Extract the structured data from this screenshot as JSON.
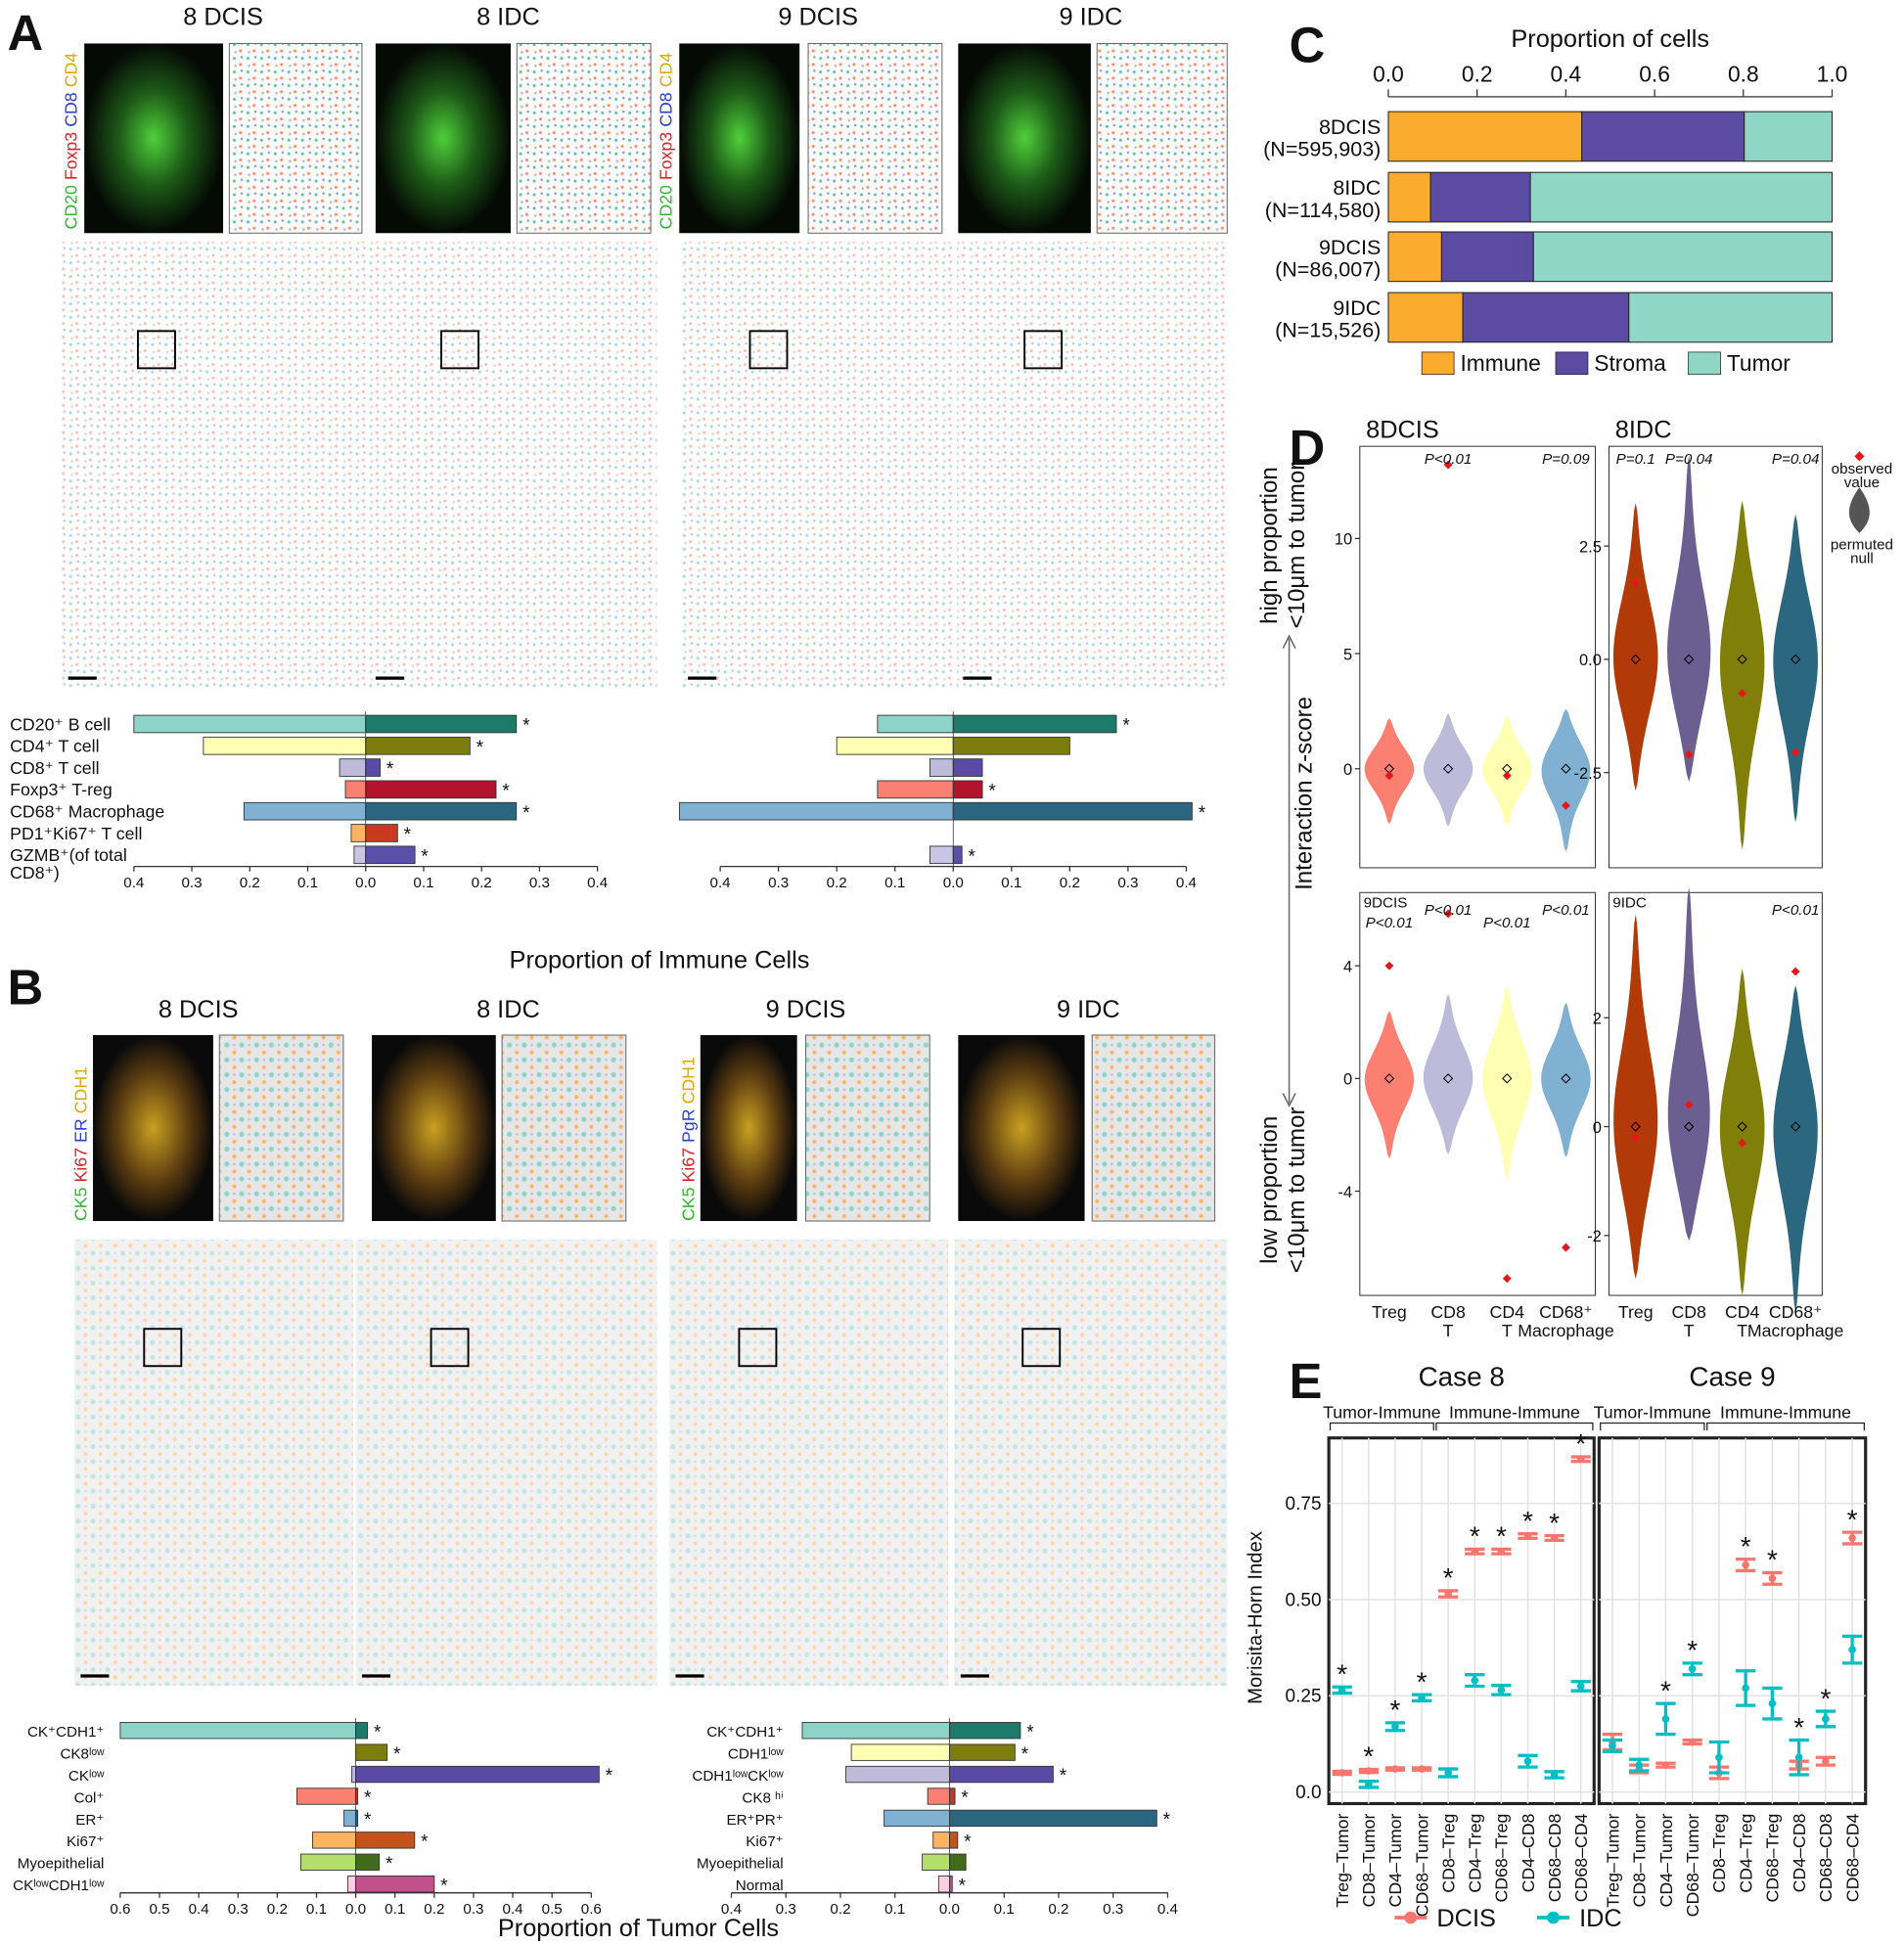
{
  "figure": {
    "panel_labels": [
      "A",
      "B",
      "C",
      "D",
      "E"
    ],
    "channels_A": [
      "CD20",
      "Foxp3",
      "CD8",
      "CD4"
    ],
    "channels_B8": [
      "CK5",
      "Ki67",
      "ER",
      "CDH1"
    ],
    "channels_B9": [
      "CK5",
      "Ki67",
      "PgR",
      "CDH1"
    ],
    "d_ylabel": "Interaction z-score",
    "d_high": [
      "high proportion",
      "<10μm to tumor"
    ],
    "d_low": [
      "low proportion",
      "<10μm to tumor"
    ]
  },
  "chart_data": [
    {
      "type": "diverging",
      "xlabel": "Proportion of Immune Cells",
      "categories": [
        "CD20⁺ B cell",
        "CD4⁺ T cell",
        "CD8⁺ T cell",
        "Foxp3⁺ T-reg",
        "CD68⁺ Macrophage",
        "PD1⁺Ki67⁺ T cell",
        [
          "GZMB⁺(of total",
          "CD8⁺)"
        ]
      ],
      "xlim": [
        0,
        0.4
      ],
      "xticks": [
        {
          "value": 0,
          "label": "0.0"
        },
        0.1,
        0.2,
        0.3,
        0.4
      ],
      "series": [
        {
          "name": "8 DCIS",
          "colors": [
            "#8dd3c7",
            "#ffffb3",
            "#bebada",
            "#fb8072",
            "#80b1d3",
            "#fdb462",
            "#c9c5e6"
          ],
          "values": [
            0.4,
            0.28,
            0.045,
            0.035,
            0.21,
            0.025,
            0.02
          ]
        },
        {
          "name": "8 IDC",
          "colors": [
            "#1e7b6c",
            "#7d7d0f",
            "#5a4aa6",
            "#b5122e",
            "#2b6680",
            "#c83a1e",
            "#5b4fab"
          ],
          "values": [
            0.26,
            0.18,
            0.025,
            0.225,
            0.26,
            0.055,
            0.085
          ],
          "stars": [
            "*",
            "*",
            "*",
            "*",
            "*",
            "*",
            "*"
          ]
        }
      ]
    },
    {
      "type": "diverging",
      "xlim": [
        0,
        0.4
      ],
      "xticks": [
        {
          "value": 0,
          "label": "0.0"
        },
        0.1,
        0.2,
        0.3,
        0.4
      ],
      "series": [
        {
          "name": "9 DCIS",
          "colors": [
            "#8dd3c7",
            "#ffffb3",
            "#bebada",
            "#fb8072",
            "#80b1d3",
            "#fdb462",
            "#c9c5e6"
          ],
          "values": [
            0.13,
            0.2,
            0.04,
            0.13,
            0.47,
            null,
            0.04
          ]
        },
        {
          "name": "9 IDC",
          "colors": [
            "#1e7b6c",
            "#7d7d0f",
            "#5a4aa6",
            "#b5122e",
            "#2b6680",
            "#c83a1e",
            "#5b4fab"
          ],
          "values": [
            0.28,
            0.2,
            0.05,
            0.05,
            0.41,
            null,
            0.015
          ],
          "stars": [
            "*",
            null,
            null,
            "*",
            "*",
            null,
            "*"
          ]
        }
      ]
    },
    {
      "type": "diverging",
      "xlabel": "Proportion of Tumor Cells",
      "categories": [
        "CK⁺CDH1⁺",
        "CK8ˡᵒʷ",
        "CKˡᵒʷ",
        "Col⁺",
        "ER⁺",
        "Ki67⁺",
        "Myoepithelial",
        "CKˡᵒʷCDH1ˡᵒʷ"
      ],
      "xlim": [
        0,
        0.6
      ],
      "xticks": [
        {
          "value": 0,
          "label": "0.0"
        },
        0.1,
        0.2,
        0.3,
        0.4,
        0.5,
        0.6
      ],
      "series": [
        {
          "name": "8 DCIS",
          "colors": [
            "#8dd3c7",
            "#ffffb3",
            "#bebada",
            "#fb8072",
            "#80b1d3",
            "#fdb462",
            "#b3de69",
            "#fccde5"
          ],
          "values": [
            0.6,
            null,
            0.01,
            0.15,
            0.03,
            0.11,
            0.14,
            0.02
          ]
        },
        {
          "name": "8 IDC",
          "colors": [
            "#1e7b6c",
            "#7d7d0f",
            "#5a4aa6",
            "#c0392b",
            "#2b6680",
            "#c2531d",
            "#3f6b1a",
            "#c2508a"
          ],
          "values": [
            0.03,
            0.08,
            0.62,
            0.005,
            0.005,
            0.15,
            0.06,
            0.2
          ],
          "stars": [
            "*",
            "*",
            "*",
            "*",
            "*",
            "*",
            "*",
            "*"
          ]
        }
      ]
    },
    {
      "type": "diverging",
      "categories": [
        "CK⁺CDH1⁺",
        "CDH1ˡᵒʷ",
        "CDH1ˡᵒʷCKˡᵒʷ",
        "CK8 ʰⁱ",
        "ER⁺PR⁺",
        "Ki67⁺",
        "Myoepithelial",
        "Normal"
      ],
      "xlim": [
        0,
        0.4
      ],
      "xticks": [
        {
          "value": 0,
          "label": "0.0"
        },
        0.1,
        0.2,
        0.3,
        0.4
      ],
      "series": [
        {
          "name": "9 DCIS",
          "colors": [
            "#8dd3c7",
            "#ffffb3",
            "#bebada",
            "#fb8072",
            "#80b1d3",
            "#fdb462",
            "#b3de69",
            "#fccde5"
          ],
          "values": [
            0.27,
            0.18,
            0.19,
            0.04,
            0.12,
            0.03,
            0.05,
            0.02
          ]
        },
        {
          "name": "9 IDC",
          "colors": [
            "#1e7b6c",
            "#7d7d0f",
            "#5a4aa6",
            "#c0392b",
            "#2b6680",
            "#c2531d",
            "#3f6b1a",
            "#c2508a"
          ],
          "values": [
            0.13,
            0.12,
            0.19,
            0.01,
            0.38,
            0.015,
            0.03,
            0.005
          ],
          "stars": [
            "*",
            "*",
            "*",
            "*",
            "*",
            "*",
            null,
            "*"
          ]
        }
      ]
    },
    {
      "type": "stacked_bar",
      "title": "Proportion of cells",
      "categories": [
        "8DCIS",
        "8IDC",
        "9DCIS",
        "9IDC"
      ],
      "n_labels": [
        "(N=595,903)",
        "(N=114,580)",
        "(N=86,007)",
        "(N=15,526)"
      ],
      "xlim": [
        0,
        1
      ],
      "xticks": [
        {
          "value": 0,
          "label": "0.0"
        },
        0.2,
        0.4,
        0.6,
        0.8,
        {
          "value": 1,
          "label": "1.0"
        }
      ],
      "series": [
        {
          "name": "Immune",
          "color": "#fbab2e",
          "values": [
            0.436,
            0.095,
            0.12,
            0.168
          ]
        },
        {
          "name": "Stroma",
          "color": "#5b4ba3",
          "values": [
            0.366,
            0.225,
            0.207,
            0.374
          ]
        },
        {
          "name": "Tumor",
          "color": "#8fd6c6",
          "values": [
            0.198,
            0.68,
            0.673,
            0.458
          ]
        }
      ]
    },
    {
      "type": "violin",
      "title": "8DCIS",
      "ylim": [
        -4.3,
        14
      ],
      "yticks": [
        0,
        5,
        10
      ],
      "colors": [
        "#fb8072",
        "#bebada",
        "#ffffb3",
        "#80b1d3"
      ],
      "null_min": [
        -2.4,
        -2.5,
        -2.5,
        -3.6
      ],
      "null_max": [
        2.2,
        2.4,
        2.3,
        2.6
      ],
      "null_median": [
        0,
        0,
        0,
        0
      ],
      "observed": [
        -0.3,
        13.2,
        -0.3,
        -1.6
      ],
      "p_labels": [
        null,
        "P<0.01",
        null,
        "P=0.09"
      ]
    },
    {
      "type": "violin",
      "title": "8IDC",
      "ylim": [
        -4.6,
        4.7
      ],
      "yticks": [
        -2.5,
        {
          "value": 0,
          "label": "0.0"
        },
        2.5
      ],
      "colors": [
        "#b23a08",
        "#6b5f92",
        "#7f7f0a",
        "#2c6780"
      ],
      "null_min": [
        -2.9,
        -2.7,
        -4.2,
        -3.6
      ],
      "null_max": [
        3.45,
        4.5,
        3.5,
        3.2
      ],
      "null_median": [
        0,
        0,
        0,
        0
      ],
      "observed": [
        1.7,
        -2.1,
        -0.75,
        -2.05
      ],
      "p_labels": [
        "P=0.1",
        "P=0.04",
        null,
        "P=0.04"
      ],
      "legend": [
        [
          "observed",
          "value"
        ],
        [
          "permuted",
          "null"
        ]
      ]
    },
    {
      "type": "violin",
      "title": "9DCIS",
      "ylim": [
        -7.7,
        6.6
      ],
      "yticks": [
        -4,
        0,
        4
      ],
      "categories": [
        [
          "Treg"
        ],
        [
          "CD8",
          "T"
        ],
        [
          "CD4",
          "T"
        ],
        [
          "CD68⁺",
          "Macrophage"
        ]
      ],
      "colors": [
        "#fb8072",
        "#bebada",
        "#ffffb3",
        "#80b1d3"
      ],
      "null_min": [
        -2.85,
        -2.7,
        -3.6,
        -2.8
      ],
      "null_max": [
        2.4,
        3.0,
        3.3,
        2.7
      ],
      "null_median": [
        0,
        0,
        0,
        0
      ],
      "observed": [
        4.0,
        5.85,
        -7.1,
        -6.0
      ],
      "p_labels": [
        "P<0.01",
        "P<0.01",
        "P<0.01",
        "P<0.01"
      ]
    },
    {
      "type": "violin",
      "title": "9IDC",
      "ylim": [
        -3.1,
        4.3
      ],
      "yticks": [
        -2,
        0,
        2
      ],
      "categories": [
        [
          "Treg"
        ],
        [
          "CD8",
          "T"
        ],
        [
          "CD4",
          "T"
        ],
        [
          "CD68⁺",
          "Macrophage"
        ]
      ],
      "colors": [
        "#b23a08",
        "#6b5f92",
        "#7f7f0a",
        "#2c6780"
      ],
      "null_min": [
        -2.8,
        -2.1,
        -3.1,
        -3.4
      ],
      "null_max": [
        3.9,
        4.4,
        2.9,
        2.6
      ],
      "null_median": [
        0,
        0,
        0,
        0
      ],
      "observed": [
        -0.2,
        0.4,
        -0.3,
        2.85
      ],
      "p_labels": [
        null,
        null,
        null,
        "P<0.01"
      ]
    },
    {
      "type": "errorbar",
      "title": "Case 8",
      "ylabel": "Morisita-Horn Index",
      "groups": [
        "Tumor-Immune",
        "Immune-Immune"
      ],
      "categories": [
        "Treg–Tumor",
        "CD8–Tumor",
        "CD4–Tumor",
        "CD68–Tumor",
        "CD8–Treg",
        "CD4–Treg",
        "CD68–Treg",
        "CD4–CD8",
        "CD68–CD8",
        "CD68–CD4"
      ],
      "category_colors": [
        "#b2182b",
        "#6a5fa0",
        "#8c8c3c",
        "#2c6780",
        "#6a5fa0",
        "#8c8c3c",
        "#2c6780",
        "#8c8c3c",
        "#2c6780",
        "#2c6780"
      ],
      "ylim": [
        -0.03,
        0.92
      ],
      "yticks": [
        {
          "value": 0,
          "label": "0.0"
        },
        0.25,
        {
          "value": 0.5,
          "label": "0.50"
        },
        0.75
      ],
      "series": [
        {
          "name": "DCIS",
          "color": "#f8766d",
          "values": [
            0.05,
            0.055,
            0.06,
            0.06,
            0.515,
            0.625,
            0.625,
            0.665,
            0.66,
            0.865
          ],
          "errors": [
            0.004,
            0.004,
            0.003,
            0.003,
            0.008,
            0.006,
            0.006,
            0.006,
            0.006,
            0.006
          ]
        },
        {
          "name": "IDC",
          "color": "#00bfc4",
          "values": [
            0.265,
            0.02,
            0.17,
            0.245,
            0.05,
            0.29,
            0.265,
            0.08,
            0.045,
            0.275
          ],
          "errors": [
            0.008,
            0.008,
            0.01,
            0.008,
            0.01,
            0.015,
            0.012,
            0.015,
            0.008,
            0.012
          ]
        }
      ],
      "stars": [
        "*",
        "*",
        "*",
        "*",
        "*",
        "*",
        "*",
        "*",
        "*",
        "*"
      ]
    },
    {
      "type": "errorbar",
      "title": "Case 9",
      "groups": [
        "Tumor-Immune",
        "Immune-Immune"
      ],
      "categories": [
        "Treg–Tumor",
        "CD8–Tumor",
        "CD4–Tumor",
        "CD68–Tumor",
        "CD8–Treg",
        "CD4–Treg",
        "CD68–Treg",
        "CD4–CD8",
        "CD68–CD8",
        "CD68–CD4"
      ],
      "category_colors": [
        "#b2182b",
        "#6a5fa0",
        "#8c8c3c",
        "#2c6780",
        "#6a5fa0",
        "#8c8c3c",
        "#2c6780",
        "#8c8c3c",
        "#2c6780",
        "#2c6780"
      ],
      "ylim": [
        -0.03,
        0.92
      ],
      "yticks": [
        0,
        0.25,
        0.5,
        0.75
      ],
      "series": [
        {
          "color": "#f8766d",
          "values": [
            0.13,
            0.06,
            0.07,
            0.13,
            0.05,
            0.59,
            0.555,
            0.07,
            0.08,
            0.66
          ],
          "errors": [
            0.02,
            0.01,
            0.005,
            0.005,
            0.015,
            0.015,
            0.015,
            0.01,
            0.01,
            0.015
          ]
        },
        {
          "color": "#00bfc4",
          "values": [
            0.12,
            0.07,
            0.19,
            0.32,
            0.09,
            0.27,
            0.23,
            0.09,
            0.19,
            0.37
          ],
          "errors": [
            0.015,
            0.015,
            0.04,
            0.015,
            0.04,
            0.045,
            0.04,
            0.045,
            0.02,
            0.035
          ]
        }
      ],
      "stars": [
        null,
        null,
        "*",
        "*",
        null,
        "*",
        "*",
        "*",
        "*",
        "*"
      ]
    }
  ]
}
